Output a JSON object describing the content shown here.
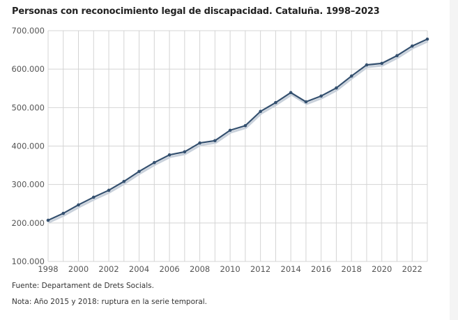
{
  "chart_data": {
    "type": "line",
    "title": "Personas con reconocimiento legal de discapacidad. Cataluña. 1998–2023",
    "xlabel": "",
    "ylabel": "",
    "x": [
      1998,
      1999,
      2000,
      2001,
      2002,
      2003,
      2004,
      2005,
      2006,
      2007,
      2008,
      2009,
      2010,
      2011,
      2012,
      2013,
      2014,
      2015,
      2016,
      2017,
      2018,
      2019,
      2020,
      2021,
      2022,
      2023
    ],
    "series": [
      {
        "values": [
          207000,
          225000,
          247000,
          267000,
          285000,
          308000,
          334000,
          357000,
          377000,
          385000,
          408000,
          414000,
          441000,
          453000,
          490000,
          513000,
          539000,
          515000,
          530000,
          551000,
          582000,
          611000,
          615000,
          635000,
          660000,
          678000
        ],
        "color": "#34506f"
      }
    ],
    "ylim": [
      100000,
      700000
    ],
    "xlim": [
      1998,
      2023
    ],
    "y_ticks": [
      "100.000",
      "200.000",
      "300.000",
      "400.000",
      "500.000",
      "600.000",
      "700.000"
    ],
    "x_ticks": [
      "1998",
      "2000",
      "2002",
      "2004",
      "2006",
      "2008",
      "2010",
      "2012",
      "2014",
      "2016",
      "2018",
      "2020",
      "2022"
    ],
    "grid": true,
    "legend": "none"
  },
  "footer": {
    "source": "Fuente: Departament de Drets Socials.",
    "note": "Nota: Año 2015 y 2018: ruptura en la serie temporal."
  }
}
